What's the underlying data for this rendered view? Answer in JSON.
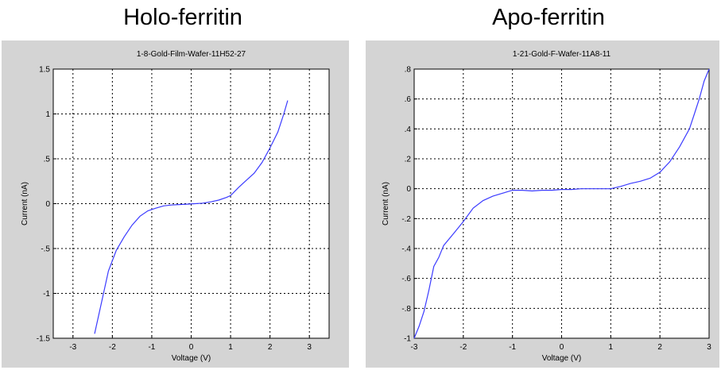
{
  "headings": [
    "Holo-ferritin",
    "Apo-ferritin"
  ],
  "chart_data": [
    {
      "type": "line",
      "heading": "Holo-ferritin",
      "title": "1-8-Gold-Film-Wafer-11H52-27",
      "xlabel": "Voltage (V)",
      "ylabel": "Current (nA)",
      "xlim": [
        -3.5,
        3.5
      ],
      "ylim": [
        -1.5,
        1.5
      ],
      "xticks": [
        -3,
        -2,
        -1,
        0,
        1,
        2,
        3
      ],
      "yticks": [
        -1.5,
        -1,
        -0.5,
        0,
        0.5,
        1,
        1.5
      ],
      "grid": true,
      "color": "#3b3bff",
      "series": [
        {
          "x": [
            -2.45,
            -2.3,
            -2.1,
            -1.9,
            -1.7,
            -1.5,
            -1.3,
            -1.1,
            -0.9,
            -0.7,
            -0.5,
            -0.3,
            -0.1,
            0.1,
            0.3,
            0.5,
            0.7,
            0.9,
            1.0,
            1.2,
            1.4,
            1.6,
            1.8,
            2.0,
            2.2,
            2.35,
            2.45
          ],
          "y": [
            -1.45,
            -1.15,
            -0.75,
            -0.52,
            -0.37,
            -0.24,
            -0.14,
            -0.08,
            -0.05,
            -0.025,
            -0.015,
            -0.01,
            -0.005,
            0.0,
            0.005,
            0.02,
            0.04,
            0.07,
            0.09,
            0.18,
            0.26,
            0.34,
            0.46,
            0.62,
            0.8,
            1.0,
            1.15
          ]
        }
      ]
    },
    {
      "type": "line",
      "heading": "Apo-ferritin",
      "title": "1-21-Gold-F-Wafer-11A8-11",
      "xlabel": "Voltage (V)",
      "ylabel": "Current (nA)",
      "xlim": [
        -3,
        3
      ],
      "ylim": [
        -1,
        0.8
      ],
      "xticks": [
        -3,
        -2,
        -1,
        0,
        1,
        2,
        3
      ],
      "yticks": [
        -1,
        -0.8,
        -0.6,
        -0.4,
        -0.2,
        0,
        0.2,
        0.4,
        0.6,
        0.8
      ],
      "grid": true,
      "color": "#3b3bff",
      "series": [
        {
          "x": [
            -3.0,
            -2.9,
            -2.8,
            -2.7,
            -2.6,
            -2.5,
            -2.4,
            -2.2,
            -2.0,
            -1.8,
            -1.6,
            -1.4,
            -1.2,
            -1.0,
            -0.8,
            -0.6,
            -0.4,
            -0.2,
            0.0,
            0.2,
            0.4,
            0.6,
            0.8,
            1.0,
            1.2,
            1.4,
            1.6,
            1.8,
            2.0,
            2.2,
            2.4,
            2.6,
            2.7,
            2.8,
            2.9,
            3.0
          ],
          "y": [
            -1.0,
            -0.92,
            -0.82,
            -0.68,
            -0.52,
            -0.46,
            -0.38,
            -0.3,
            -0.22,
            -0.13,
            -0.08,
            -0.05,
            -0.03,
            -0.01,
            -0.01,
            -0.015,
            -0.01,
            -0.01,
            -0.005,
            -0.005,
            0.0,
            0.0,
            0.0,
            0.0,
            0.015,
            0.035,
            0.05,
            0.07,
            0.11,
            0.18,
            0.28,
            0.4,
            0.5,
            0.6,
            0.72,
            0.8
          ]
        }
      ]
    }
  ]
}
